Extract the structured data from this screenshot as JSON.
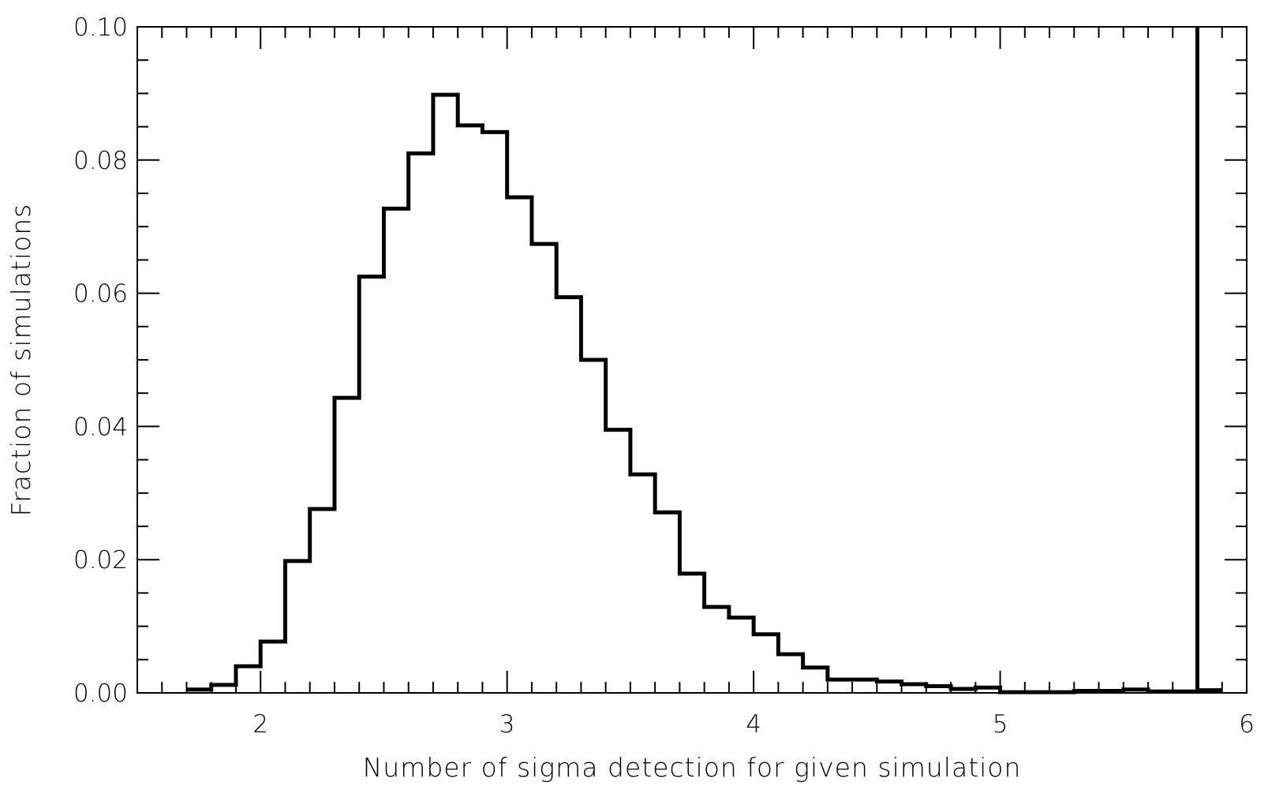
{
  "chart_data": {
    "type": "histogram",
    "title": "",
    "xlabel": "Number of sigma detection for given simulation",
    "ylabel": "Fraction of simulations",
    "xlim": [
      1.5,
      6.0
    ],
    "ylim": [
      0.0,
      0.1
    ],
    "x_ticks": [
      {
        "value": 2,
        "label": "2"
      },
      {
        "value": 3,
        "label": "3"
      },
      {
        "value": 4,
        "label": "4"
      },
      {
        "value": 5,
        "label": "5"
      },
      {
        "value": 6,
        "label": "6"
      }
    ],
    "y_ticks": [
      {
        "value": 0.0,
        "label": "0.00"
      },
      {
        "value": 0.02,
        "label": "0.02"
      },
      {
        "value": 0.04,
        "label": "0.04"
      },
      {
        "value": 0.06,
        "label": "0.06"
      },
      {
        "value": 0.08,
        "label": "0.08"
      },
      {
        "value": 0.1,
        "label": "0.10"
      }
    ],
    "x_minor_step": 0.1,
    "y_minor_step": 0.005,
    "grid": false,
    "bins": {
      "start": 1.7,
      "width": 0.1,
      "values": [
        0.0005,
        0.0012,
        0.004,
        0.0077,
        0.0198,
        0.0276,
        0.0443,
        0.0625,
        0.0727,
        0.081,
        0.0898,
        0.0852,
        0.0842,
        0.0744,
        0.0674,
        0.0594,
        0.05,
        0.0395,
        0.0328,
        0.0271,
        0.0179,
        0.0129,
        0.0113,
        0.0088,
        0.0058,
        0.0038,
        0.002,
        0.002,
        0.0017,
        0.0013,
        0.001,
        0.0006,
        0.0008,
        0.0001,
        0.0001,
        0.0001,
        0.0003,
        0.0003,
        0.0005,
        0.0002,
        0.0002,
        0.0004
      ]
    },
    "vertical_marker": {
      "x": 5.8
    },
    "line_color": "#000000"
  }
}
